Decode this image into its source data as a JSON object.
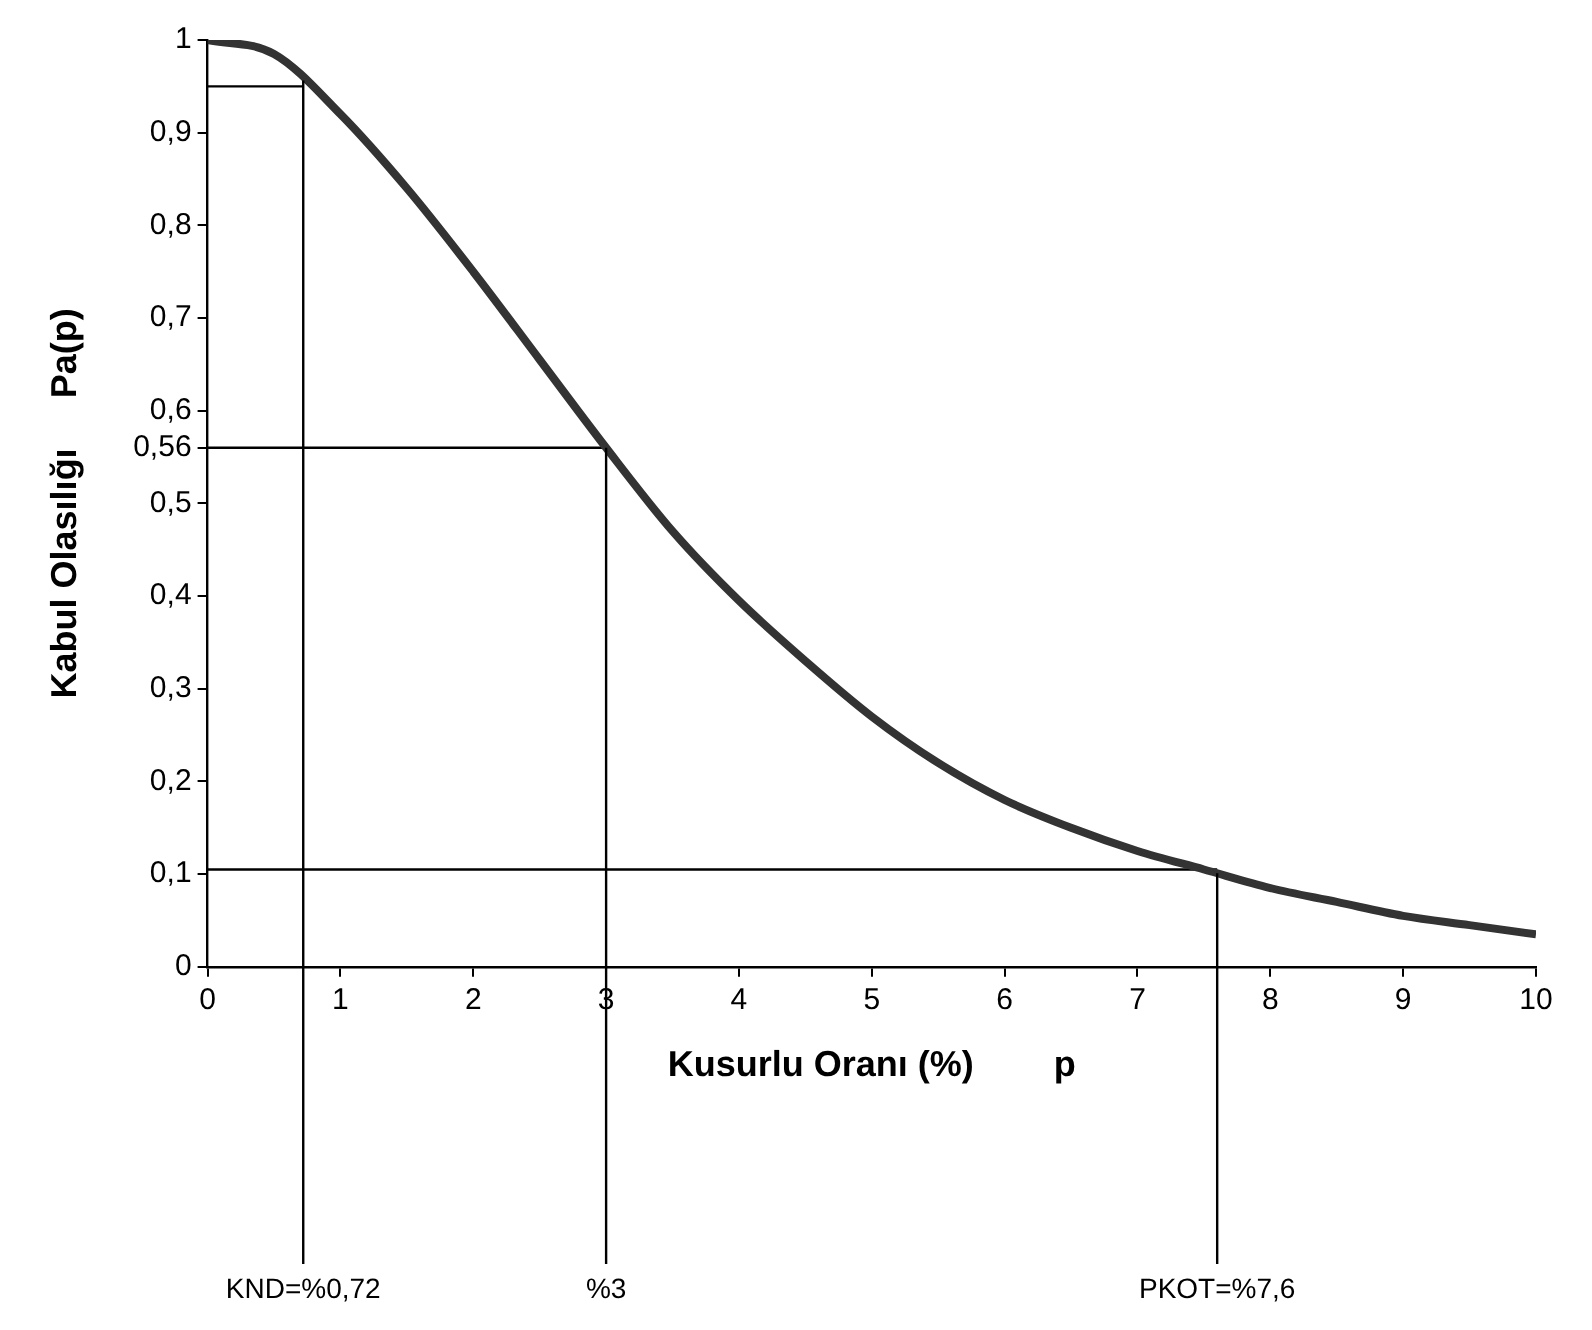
{
  "chart_data": {
    "type": "line",
    "xlabel": "Kusurlu Oranı (%)        p",
    "ylabel": "Kabul Olasılığı     Pa(p)",
    "x": [
      0,
      0.5,
      1,
      1.5,
      2,
      2.5,
      3,
      3.5,
      4,
      4.5,
      5,
      5.5,
      6,
      6.5,
      7,
      7.5,
      8,
      8.5,
      9,
      9.5,
      10
    ],
    "series": [
      {
        "color": "#333333",
        "values": [
          1.0,
          0.985,
          0.92,
          0.84,
          0.75,
          0.655,
          0.56,
          0.47,
          0.395,
          0.33,
          0.27,
          0.22,
          0.18,
          0.15,
          0.125,
          0.105,
          0.085,
          0.07,
          0.055,
          0.045,
          0.035
        ]
      },
      {
        "color": "#000000",
        "x": [
          0,
          0.72
        ],
        "values": [
          0.95,
          0.95
        ]
      },
      {
        "color": "#000000",
        "x": [
          0,
          3
        ],
        "values": [
          0.56,
          0.56
        ]
      },
      {
        "color": "#000000",
        "x": [
          0,
          7.6
        ],
        "values": [
          0.105,
          0.105
        ]
      }
    ],
    "xlim": [
      0,
      10
    ],
    "xticks": [
      0,
      1,
      2,
      3,
      4,
      5,
      6,
      7,
      8,
      9,
      10
    ],
    "ylim": [
      0,
      1
    ],
    "yticks": [
      0,
      {
        "value": 0.1,
        "label": "0,1"
      },
      {
        "value": 0.2,
        "label": "0,2"
      },
      {
        "value": 0.3,
        "label": "0,3"
      },
      {
        "value": 0.4,
        "label": "0,4"
      },
      {
        "value": 0.5,
        "label": "0,5"
      },
      {
        "value": 0.56,
        "label": "0,56"
      },
      {
        "value": 0.6,
        "label": "0,6"
      },
      {
        "value": 0.7,
        "label": "0,7"
      },
      {
        "value": 0.8,
        "label": "0,8"
      },
      {
        "value": 0.9,
        "label": "0,9"
      },
      1
    ],
    "ref_lines": [
      {
        "axis": "x",
        "value": 0.72,
        "label": "KND=%0,72"
      },
      {
        "axis": "x",
        "value": 3,
        "label": "%3"
      },
      {
        "axis": "x",
        "value": 7.6,
        "label": "PKOT=%7,6"
      }
    ],
    "grid": false,
    "legend": false,
    "marker": "none",
    "line_style": "solid"
  }
}
